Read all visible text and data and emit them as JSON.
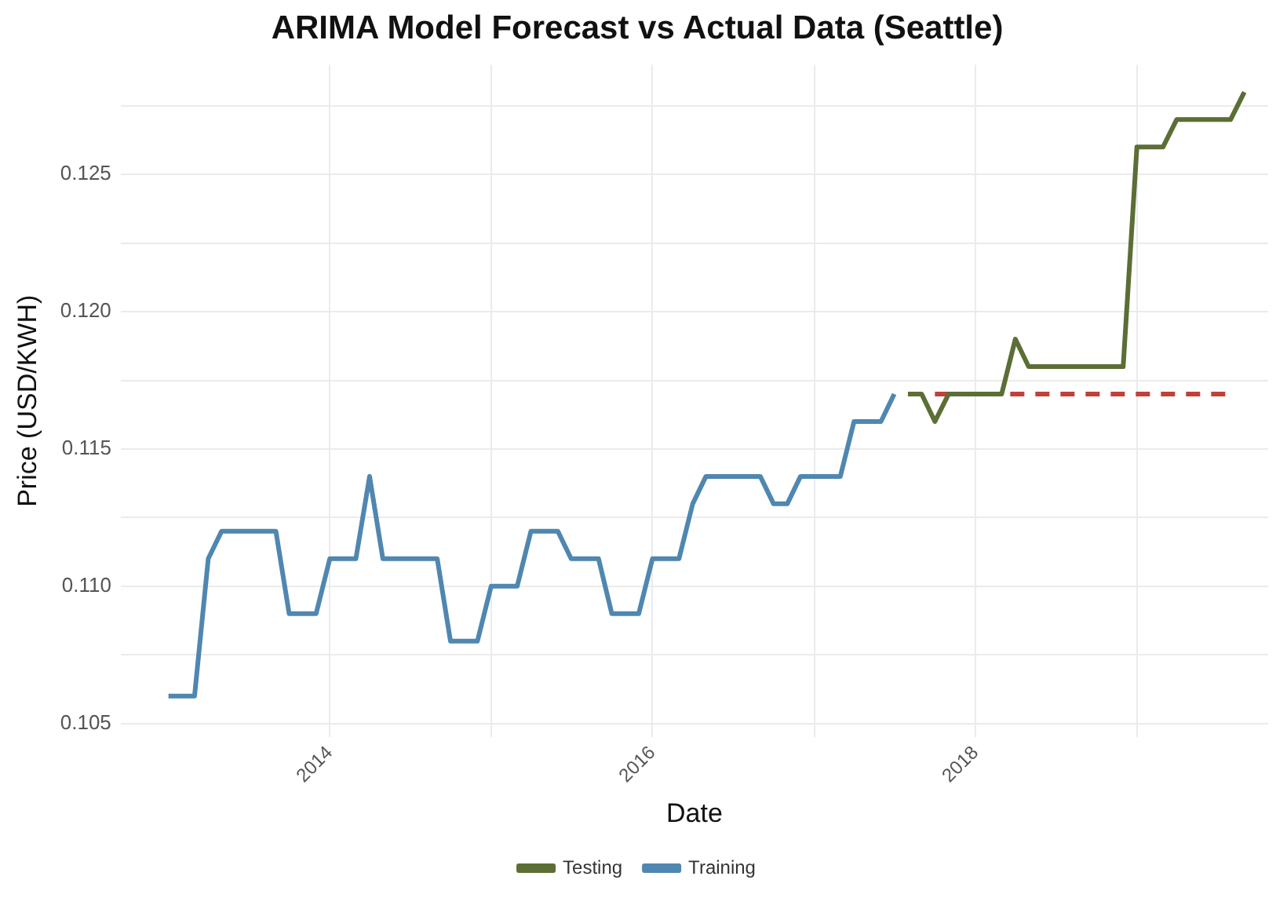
{
  "chart_data": {
    "type": "line",
    "title": "ARIMA Model Forecast vs Actual Data (Seattle)",
    "xlabel": "Date",
    "ylabel": "Price (USD/KWH)",
    "series": [
      {
        "name": "Testing",
        "color": "#5b6e35",
        "x": [
          "2017-08",
          "2017-09",
          "2017-10",
          "2017-11",
          "2017-12",
          "2018-01",
          "2018-02",
          "2018-03",
          "2018-04",
          "2018-05",
          "2018-06",
          "2018-07",
          "2018-08",
          "2018-09",
          "2018-10",
          "2018-11",
          "2018-12",
          "2019-01",
          "2019-02",
          "2019-03",
          "2019-04",
          "2019-05",
          "2019-06",
          "2019-07",
          "2019-08",
          "2019-09"
        ],
        "values": [
          0.117,
          0.117,
          0.116,
          0.117,
          0.117,
          0.117,
          0.117,
          0.117,
          0.119,
          0.118,
          0.118,
          0.118,
          0.118,
          0.118,
          0.118,
          0.118,
          0.118,
          0.126,
          0.126,
          0.126,
          0.127,
          0.127,
          0.127,
          0.127,
          0.127,
          0.128
        ]
      },
      {
        "name": "Training",
        "color": "#4f87b0",
        "x": [
          "2013-01",
          "2013-02",
          "2013-03",
          "2013-04",
          "2013-05",
          "2013-06",
          "2013-07",
          "2013-08",
          "2013-09",
          "2013-10",
          "2013-11",
          "2013-12",
          "2014-01",
          "2014-02",
          "2014-03",
          "2014-04",
          "2014-05",
          "2014-06",
          "2014-07",
          "2014-08",
          "2014-09",
          "2014-10",
          "2014-11",
          "2014-12",
          "2015-01",
          "2015-02",
          "2015-03",
          "2015-04",
          "2015-05",
          "2015-06",
          "2015-07",
          "2015-08",
          "2015-09",
          "2015-10",
          "2015-11",
          "2015-12",
          "2016-01",
          "2016-02",
          "2016-03",
          "2016-04",
          "2016-05",
          "2016-06",
          "2016-07",
          "2016-08",
          "2016-09",
          "2016-10",
          "2016-11",
          "2016-12",
          "2017-01",
          "2017-02",
          "2017-03",
          "2017-04",
          "2017-05",
          "2017-06",
          "2017-07"
        ],
        "values": [
          0.106,
          0.106,
          0.106,
          0.111,
          0.112,
          0.112,
          0.112,
          0.112,
          0.112,
          0.109,
          0.109,
          0.109,
          0.111,
          0.111,
          0.111,
          0.114,
          0.111,
          0.111,
          0.111,
          0.111,
          0.111,
          0.108,
          0.108,
          0.108,
          0.11,
          0.11,
          0.11,
          0.112,
          0.112,
          0.112,
          0.111,
          0.111,
          0.111,
          0.109,
          0.109,
          0.109,
          0.111,
          0.111,
          0.111,
          0.113,
          0.114,
          0.114,
          0.114,
          0.114,
          0.114,
          0.113,
          0.113,
          0.114,
          0.114,
          0.114,
          0.114,
          0.116,
          0.116,
          0.116,
          0.117
        ]
      },
      {
        "color": "#c0413a",
        "line_style": "dashed",
        "x": [
          "2017-10",
          "2017-11",
          "2017-12",
          "2018-01",
          "2018-02",
          "2018-03",
          "2018-04",
          "2018-05",
          "2018-06",
          "2018-07",
          "2018-08",
          "2018-09",
          "2018-10",
          "2018-11",
          "2018-12",
          "2019-01",
          "2019-02",
          "2019-03",
          "2019-04",
          "2019-05",
          "2019-06",
          "2019-07",
          "2019-08"
        ],
        "values": [
          0.117,
          0.117,
          0.117,
          0.117,
          0.117,
          0.117,
          0.117,
          0.117,
          0.117,
          0.117,
          0.117,
          0.117,
          0.117,
          0.117,
          0.117,
          0.117,
          0.117,
          0.117,
          0.117,
          0.117,
          0.117,
          0.117,
          0.117
        ]
      }
    ],
    "xlim": [
      "2012-09-15",
      "2019-10-25"
    ],
    "xticks": [
      {
        "value": "2014",
        "label": "2014"
      },
      {
        "value": "2015",
        "label": null
      },
      {
        "value": "2016",
        "label": "2016"
      },
      {
        "value": "2017",
        "label": null
      },
      {
        "value": "2018",
        "label": "2018"
      },
      {
        "value": "2019",
        "label": null
      }
    ],
    "ylim": [
      0.1045,
      0.129
    ],
    "yticks": [
      {
        "value": 0.105,
        "label": "0.105"
      },
      {
        "value": 0.1075,
        "label": null
      },
      {
        "value": 0.11,
        "label": "0.110"
      },
      {
        "value": 0.1125,
        "label": null
      },
      {
        "value": 0.115,
        "label": "0.115"
      },
      {
        "value": 0.1175,
        "label": null
      },
      {
        "value": 0.12,
        "label": "0.120"
      },
      {
        "value": 0.1225,
        "label": null
      },
      {
        "value": 0.125,
        "label": "0.125"
      },
      {
        "value": 0.1275,
        "label": null
      }
    ],
    "grid": true,
    "legend": "bottom",
    "marker": "none",
    "line_style": "solid"
  }
}
